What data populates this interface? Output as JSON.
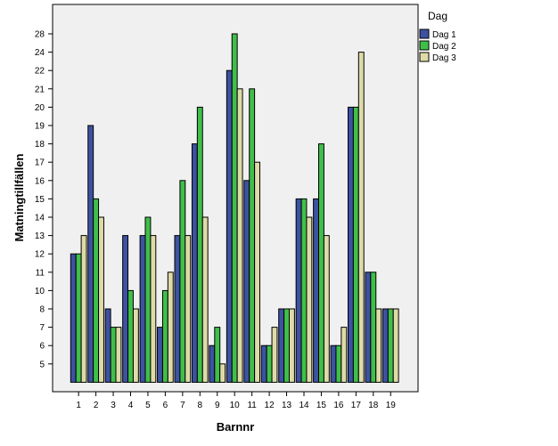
{
  "chart_data": {
    "type": "bar",
    "title": "",
    "xlabel": "Barnnr",
    "ylabel": "Matningtillfällen",
    "categories": [
      "1",
      "2",
      "3",
      "4",
      "5",
      "6",
      "7",
      "8",
      "9",
      "10",
      "11",
      "12",
      "13",
      "14",
      "15",
      "16",
      "17",
      "18",
      "19"
    ],
    "y_ticks": [
      "5",
      "6",
      "7",
      "8",
      "10",
      "11",
      "12",
      "13",
      "14",
      "15",
      "16",
      "17",
      "18",
      "19",
      "20",
      "21",
      "22",
      "24",
      "28"
    ],
    "series": [
      {
        "name": "Dag 1",
        "color": "#3d52a1",
        "values": [
          "12",
          "19",
          "8",
          "13",
          "13",
          "7",
          "13",
          "18",
          "6",
          "22",
          "16",
          "6",
          "8",
          "15",
          "15",
          "6",
          "20",
          "11",
          "8"
        ]
      },
      {
        "name": "Dag 2",
        "color": "#3fbf4a",
        "values": [
          "12",
          "15",
          "7",
          "10",
          "14",
          "10",
          "16",
          "20",
          "7",
          "28",
          "21",
          "6",
          "8",
          "15",
          "18",
          "6",
          "20",
          "11",
          "8"
        ]
      },
      {
        "name": "Dag 3",
        "color": "#dedba8",
        "values": [
          "13",
          "14",
          "7",
          "8",
          "13",
          "11",
          "13",
          "14",
          "5",
          "21",
          "17",
          "7",
          "8",
          "14",
          "13",
          "7",
          "24",
          "8",
          "8"
        ]
      }
    ],
    "legend": {
      "title": "Dag",
      "position": "right"
    },
    "grid": false
  }
}
